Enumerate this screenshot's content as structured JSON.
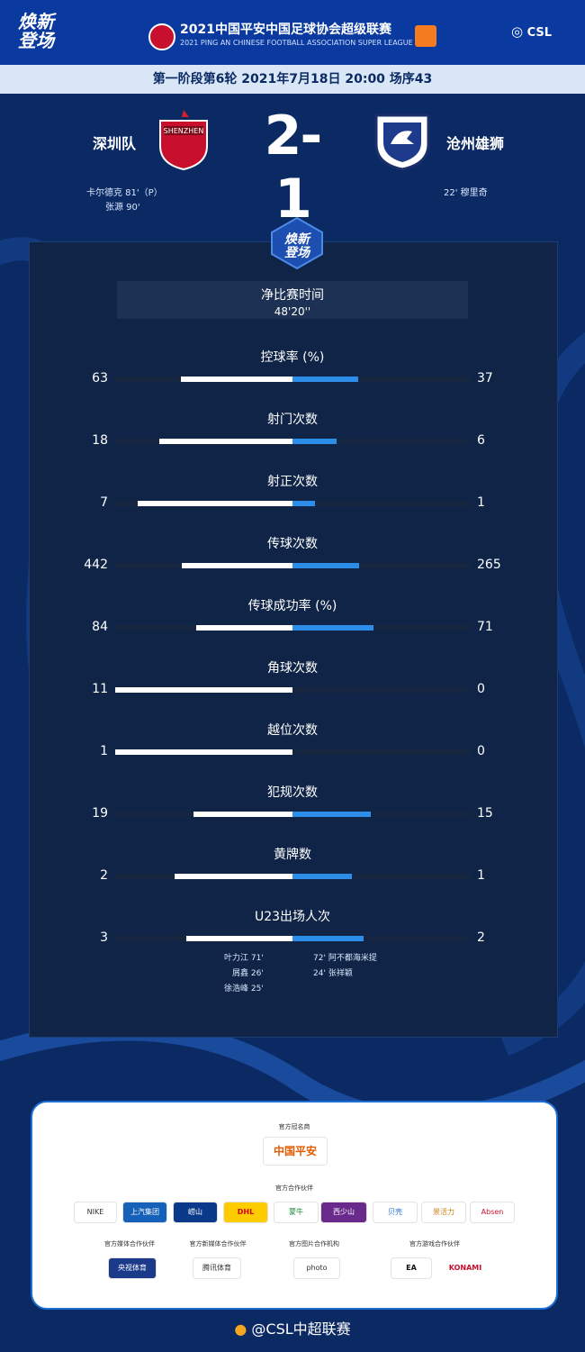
{
  "header": {
    "brand": [
      "焕新",
      "登场"
    ],
    "league_title": "2021中国平安中国足球协会超级联赛",
    "league_subtitle": "2021 PING AN CHINESE FOOTBALL ASSOCIATION SUPER LEAGUE",
    "csl": "CSL",
    "match_info": "第一阶段第6轮  2021年7月18日 20:00 场序43"
  },
  "match": {
    "home_team": "深圳队",
    "away_team": "沧州雄狮",
    "score": "2-1",
    "home_scorers": [
      "卡尔德克  81'（P）",
      "张源  90'"
    ],
    "away_scorers": [
      "22'  穆里奇"
    ]
  },
  "net_time": {
    "label": "净比赛时间",
    "value": "48'20''"
  },
  "chart_data": {
    "type": "bar",
    "categories": [
      "控球率 (%)",
      "射门次数",
      "射正次数",
      "传球次数",
      "传球成功率 (%)",
      "角球次数",
      "越位次数",
      "犯规次数",
      "黄牌数",
      "U23出场人次"
    ],
    "series": [
      {
        "name": "深圳队",
        "values": [
          63,
          18,
          7,
          442,
          84,
          11,
          1,
          19,
          2,
          3
        ]
      },
      {
        "name": "沧州雄狮",
        "values": [
          37,
          6,
          1,
          265,
          71,
          0,
          0,
          15,
          1,
          2
        ]
      }
    ],
    "title": "",
    "xlabel": "",
    "ylabel": "",
    "colors": {
      "home": "#ffffff",
      "away": "#2c8ee8",
      "track": "#162640"
    }
  },
  "u23": {
    "home": [
      {
        "name": "叶力江",
        "min": "71'"
      },
      {
        "name": "屑鑫",
        "min": "26'"
      },
      {
        "name": "徐浩峰",
        "min": "25'"
      }
    ],
    "away": [
      {
        "min": "72'",
        "name": "阿不都海米提"
      },
      {
        "min": "24'",
        "name": "张祥颖"
      }
    ]
  },
  "sponsors": {
    "title_sponsor_head": "官方冠名商",
    "title_sponsor": "中国平安",
    "partners_head": "官方合作伙伴",
    "partners": [
      "NIKE",
      "上汽集团",
      "崂山",
      "DHL",
      "蒙牛",
      "西少山",
      "贝壳",
      "景活力",
      "Absen"
    ],
    "heads2": [
      "官方媒体合作伙伴",
      "官方新媒体合作伙伴",
      "官方图片合作机构",
      "官方游戏合作伙伴"
    ],
    "logos2": [
      "央视体育",
      "腾讯体育",
      "photo",
      "EA",
      "KONAMI"
    ]
  },
  "footer": "@CSL中超联赛"
}
